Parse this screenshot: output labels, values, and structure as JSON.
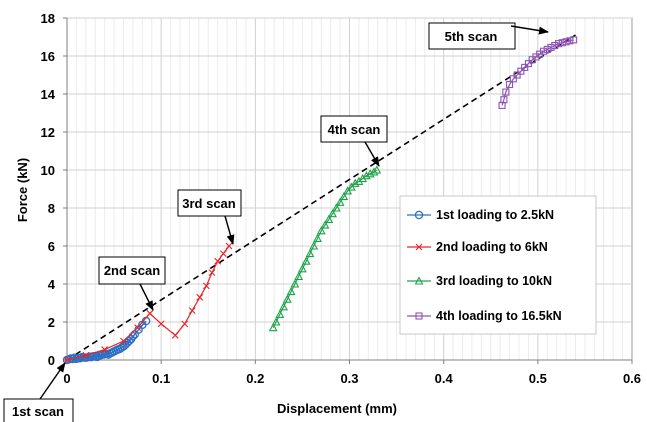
{
  "chart_data": {
    "type": "scatter",
    "title": "",
    "xlabel": "Displacement (mm)",
    "ylabel": "Force (kN)",
    "xlim": [
      0,
      0.6
    ],
    "ylim": [
      0,
      18
    ],
    "x_ticks": [
      "0",
      "0.1",
      "0.2",
      "0.3",
      "0.4",
      "0.5",
      "0.6"
    ],
    "y_ticks": [
      "0",
      "2",
      "4",
      "6",
      "8",
      "10",
      "12",
      "14",
      "16",
      "18"
    ],
    "grid": true,
    "legend_position": "right",
    "series": [
      {
        "name": "1st loading to 2.5kN",
        "color": "#2e6fc4",
        "marker": "circle",
        "points": [
          [
            0.0,
            0.0
          ],
          [
            0.004,
            0.08
          ],
          [
            0.008,
            0.12
          ],
          [
            0.012,
            0.1
          ],
          [
            0.016,
            0.15
          ],
          [
            0.02,
            0.12
          ],
          [
            0.024,
            0.18
          ],
          [
            0.028,
            0.2
          ],
          [
            0.032,
            0.16
          ],
          [
            0.036,
            0.26
          ],
          [
            0.04,
            0.3
          ],
          [
            0.044,
            0.28
          ],
          [
            0.048,
            0.4
          ],
          [
            0.052,
            0.5
          ],
          [
            0.056,
            0.58
          ],
          [
            0.06,
            0.72
          ],
          [
            0.064,
            0.9
          ],
          [
            0.068,
            1.1
          ],
          [
            0.072,
            1.35
          ],
          [
            0.076,
            1.6
          ],
          [
            0.08,
            1.85
          ],
          [
            0.084,
            2.05
          ],
          [
            0.07,
            1.25
          ],
          [
            0.066,
            1.0
          ],
          [
            0.062,
            0.8
          ],
          [
            0.058,
            0.65
          ],
          [
            0.054,
            0.55
          ],
          [
            0.05,
            0.45
          ],
          [
            0.046,
            0.35
          ],
          [
            0.042,
            0.32
          ],
          [
            0.038,
            0.28
          ],
          [
            0.034,
            0.22
          ],
          [
            0.03,
            0.18
          ],
          [
            0.026,
            0.15
          ],
          [
            0.022,
            0.14
          ],
          [
            0.018,
            0.13
          ],
          [
            0.014,
            0.09
          ],
          [
            0.01,
            0.06
          ],
          [
            0.006,
            0.05
          ],
          [
            0.002,
            0.03
          ]
        ]
      },
      {
        "name": "2nd loading to 6kN",
        "color": "#e8262a",
        "marker": "x",
        "points": [
          [
            0.0,
            0.0
          ],
          [
            0.02,
            0.25
          ],
          [
            0.04,
            0.55
          ],
          [
            0.06,
            1.0
          ],
          [
            0.075,
            1.7
          ],
          [
            0.088,
            2.45
          ],
          [
            0.1,
            1.9
          ],
          [
            0.115,
            1.3
          ],
          [
            0.125,
            1.9
          ],
          [
            0.133,
            2.6
          ],
          [
            0.141,
            3.3
          ],
          [
            0.148,
            3.9
          ],
          [
            0.154,
            4.6
          ],
          [
            0.16,
            5.2
          ],
          [
            0.166,
            5.6
          ],
          [
            0.172,
            6.0
          ]
        ]
      },
      {
        "name": "3rd loading to 10kN",
        "color": "#1ea34a",
        "marker": "triangle",
        "points": [
          [
            0.219,
            1.7
          ],
          [
            0.222,
            2.0
          ],
          [
            0.226,
            2.4
          ],
          [
            0.23,
            2.8
          ],
          [
            0.234,
            3.2
          ],
          [
            0.238,
            3.6
          ],
          [
            0.242,
            4.0
          ],
          [
            0.246,
            4.4
          ],
          [
            0.25,
            4.8
          ],
          [
            0.254,
            5.2
          ],
          [
            0.258,
            5.6
          ],
          [
            0.262,
            6.0
          ],
          [
            0.266,
            6.4
          ],
          [
            0.27,
            6.8
          ],
          [
            0.274,
            7.1
          ],
          [
            0.278,
            7.4
          ],
          [
            0.282,
            7.7
          ],
          [
            0.286,
            8.0
          ],
          [
            0.29,
            8.3
          ],
          [
            0.294,
            8.6
          ],
          [
            0.298,
            8.9
          ],
          [
            0.302,
            9.1
          ],
          [
            0.306,
            9.3
          ],
          [
            0.31,
            9.4
          ],
          [
            0.314,
            9.55
          ],
          [
            0.318,
            9.7
          ],
          [
            0.322,
            9.8
          ],
          [
            0.326,
            9.9
          ],
          [
            0.329,
            10.0
          ]
        ]
      },
      {
        "name": "4th loading to 16.5kN",
        "color": "#8e54b5",
        "marker": "square",
        "points": [
          [
            0.462,
            13.4
          ],
          [
            0.464,
            13.7
          ],
          [
            0.466,
            14.1
          ],
          [
            0.47,
            14.5
          ],
          [
            0.474,
            14.8
          ],
          [
            0.478,
            15.0
          ],
          [
            0.482,
            15.2
          ],
          [
            0.486,
            15.4
          ],
          [
            0.49,
            15.6
          ],
          [
            0.494,
            15.8
          ],
          [
            0.498,
            15.95
          ],
          [
            0.502,
            16.1
          ],
          [
            0.506,
            16.25
          ],
          [
            0.51,
            16.35
          ],
          [
            0.514,
            16.45
          ],
          [
            0.518,
            16.55
          ],
          [
            0.522,
            16.65
          ],
          [
            0.526,
            16.7
          ],
          [
            0.53,
            16.75
          ],
          [
            0.534,
            16.8
          ],
          [
            0.538,
            16.85
          ]
        ]
      }
    ],
    "trend_line": {
      "style": "dashed",
      "color": "#000000",
      "from": [
        0,
        0
      ],
      "to": [
        0.54,
        17.1
      ]
    },
    "annotations": [
      {
        "text": "1st scan",
        "target": [
          0,
          0
        ]
      },
      {
        "text": "2nd scan",
        "target": [
          0.088,
          2.5
        ]
      },
      {
        "text": "3rd scan",
        "target": [
          0.172,
          6.1
        ]
      },
      {
        "text": "4th scan",
        "target": [
          0.33,
          10.0
        ]
      },
      {
        "text": "5th scan",
        "target": [
          0.54,
          17.1
        ]
      }
    ]
  }
}
